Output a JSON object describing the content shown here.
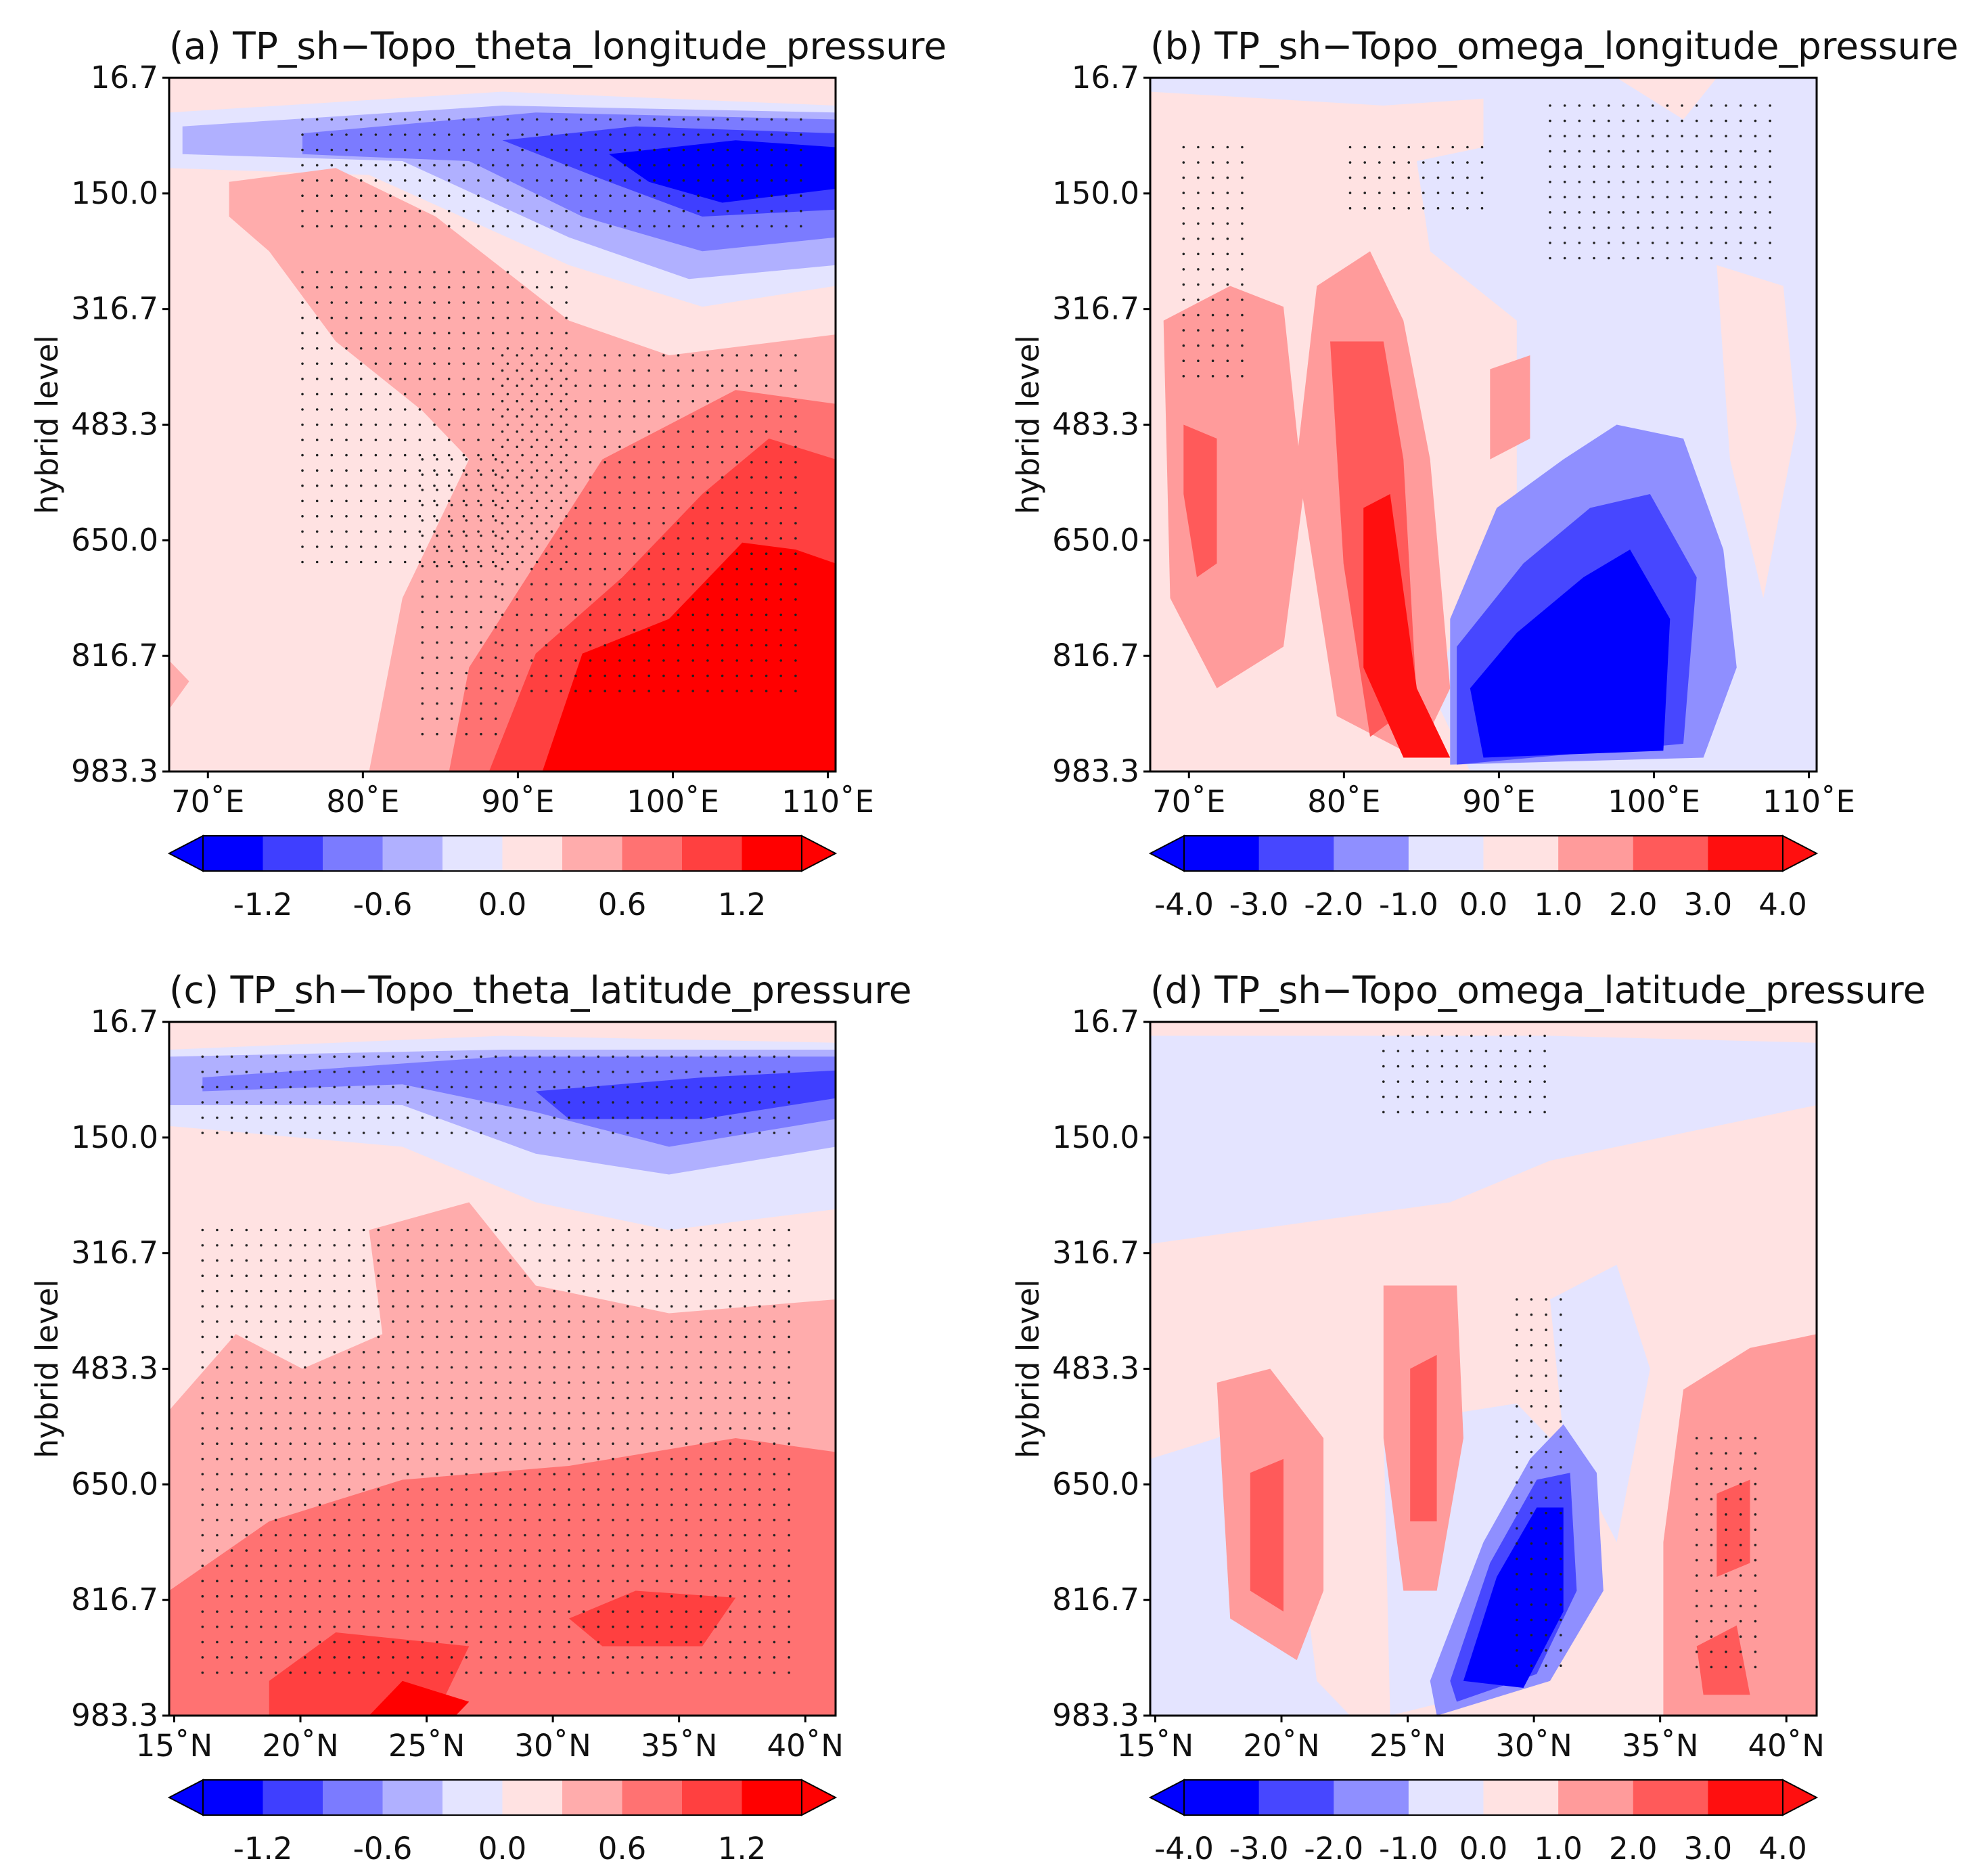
{
  "figure": {
    "ylabel": "hybrid level"
  },
  "chart_data": [
    {
      "type": "heatmap",
      "panel": "a",
      "title": "(a) TP_sh−Topo_theta_longitude_pressure",
      "ylabel": "hybrid level",
      "y_ticks": [
        "16.7",
        "150.0",
        "316.7",
        "483.3",
        "650.0",
        "816.7",
        "983.3"
      ],
      "x_ticks": [
        {
          "value": 70,
          "label": "70˚E"
        },
        {
          "value": 80,
          "label": "80˚E"
        },
        {
          "value": 90,
          "label": "90˚E"
        },
        {
          "value": 100,
          "label": "100˚E"
        },
        {
          "value": 110,
          "label": "110˚E"
        }
      ],
      "xlim": [
        67.5,
        110.5
      ],
      "ylim": [
        16.7,
        983.3
      ],
      "colorbar": {
        "ticks": [
          "-1.2",
          "-0.6",
          "0.0",
          "0.6",
          "1.2"
        ],
        "levels": [
          -1.5,
          -1.2,
          -0.9,
          -0.6,
          -0.3,
          0.0,
          0.3,
          0.6,
          0.9,
          1.2,
          1.5
        ],
        "colors": [
          "#0000ff",
          "#3f3fff",
          "#7b7bff",
          "#b0b0ff",
          "#e4e4ff",
          "#ffe2e2",
          "#ffacac",
          "#ff7272",
          "#ff4040",
          "#ff0000"
        ],
        "extend": "both"
      },
      "grid": false,
      "stippling": "significant regions"
    },
    {
      "type": "heatmap",
      "panel": "b",
      "title": "(b) TP_sh−Topo_omega_longitude_pressure",
      "ylabel": "hybrid level",
      "y_ticks": [
        "16.7",
        "150.0",
        "316.7",
        "483.3",
        "650.0",
        "816.7",
        "983.3"
      ],
      "x_ticks": [
        {
          "value": 70,
          "label": "70˚E"
        },
        {
          "value": 80,
          "label": "80˚E"
        },
        {
          "value": 90,
          "label": "90˚E"
        },
        {
          "value": 100,
          "label": "100˚E"
        },
        {
          "value": 110,
          "label": "110˚E"
        }
      ],
      "xlim": [
        67.5,
        110.5
      ],
      "ylim": [
        16.7,
        983.3
      ],
      "colorbar": {
        "ticks": [
          "-4.0",
          "-3.0",
          "-2.0",
          "-1.0",
          "0.0",
          "1.0",
          "2.0",
          "3.0",
          "4.0"
        ],
        "levels": [
          -4.0,
          -3.0,
          -2.0,
          -1.0,
          0.0,
          1.0,
          2.0,
          3.0,
          4.0
        ],
        "colors": [
          "#0000ff",
          "#4747ff",
          "#8f8fff",
          "#e4e4ff",
          "#ffe2e2",
          "#ff9b9b",
          "#ff5a5a",
          "#ff0f0f"
        ],
        "extend": "both"
      },
      "grid": false,
      "stippling": "significant regions"
    },
    {
      "type": "heatmap",
      "panel": "c",
      "title": "(c) TP_sh−Topo_theta_latitude_pressure",
      "ylabel": "hybrid level",
      "y_ticks": [
        "16.7",
        "150.0",
        "316.7",
        "483.3",
        "650.0",
        "816.7",
        "983.3"
      ],
      "x_ticks": [
        {
          "value": 15,
          "label": "15˚N"
        },
        {
          "value": 20,
          "label": "20˚N"
        },
        {
          "value": 25,
          "label": "25˚N"
        },
        {
          "value": 30,
          "label": "30˚N"
        },
        {
          "value": 35,
          "label": "35˚N"
        },
        {
          "value": 40,
          "label": "40˚N"
        }
      ],
      "xlim": [
        14.8,
        41.2
      ],
      "ylim": [
        16.7,
        983.3
      ],
      "colorbar": {
        "ticks": [
          "-1.2",
          "-0.6",
          "0.0",
          "0.6",
          "1.2"
        ],
        "levels": [
          -1.5,
          -1.2,
          -0.9,
          -0.6,
          -0.3,
          0.0,
          0.3,
          0.6,
          0.9,
          1.2,
          1.5
        ],
        "colors": [
          "#0000ff",
          "#3f3fff",
          "#7b7bff",
          "#b0b0ff",
          "#e4e4ff",
          "#ffe2e2",
          "#ffacac",
          "#ff7272",
          "#ff4040",
          "#ff0000"
        ],
        "extend": "both"
      },
      "grid": false,
      "stippling": "significant regions"
    },
    {
      "type": "heatmap",
      "panel": "d",
      "title": "(d) TP_sh−Topo_omega_latitude_pressure",
      "ylabel": "hybrid level",
      "y_ticks": [
        "16.7",
        "150.0",
        "316.7",
        "483.3",
        "650.0",
        "816.7",
        "983.3"
      ],
      "x_ticks": [
        {
          "value": 15,
          "label": "15˚N"
        },
        {
          "value": 20,
          "label": "20˚N"
        },
        {
          "value": 25,
          "label": "25˚N"
        },
        {
          "value": 30,
          "label": "30˚N"
        },
        {
          "value": 35,
          "label": "35˚N"
        },
        {
          "value": 40,
          "label": "40˚N"
        }
      ],
      "xlim": [
        14.8,
        41.2
      ],
      "ylim": [
        16.7,
        983.3
      ],
      "colorbar": {
        "ticks": [
          "-4.0",
          "-3.0",
          "-2.0",
          "-1.0",
          "0.0",
          "1.0",
          "2.0",
          "3.0",
          "4.0"
        ],
        "levels": [
          -4.0,
          -3.0,
          -2.0,
          -1.0,
          0.0,
          1.0,
          2.0,
          3.0,
          4.0
        ],
        "colors": [
          "#0000ff",
          "#4747ff",
          "#8f8fff",
          "#e4e4ff",
          "#ffe2e2",
          "#ff9b9b",
          "#ff5a5a",
          "#ff0f0f"
        ],
        "extend": "both"
      },
      "grid": false,
      "stippling": "significant regions"
    }
  ]
}
